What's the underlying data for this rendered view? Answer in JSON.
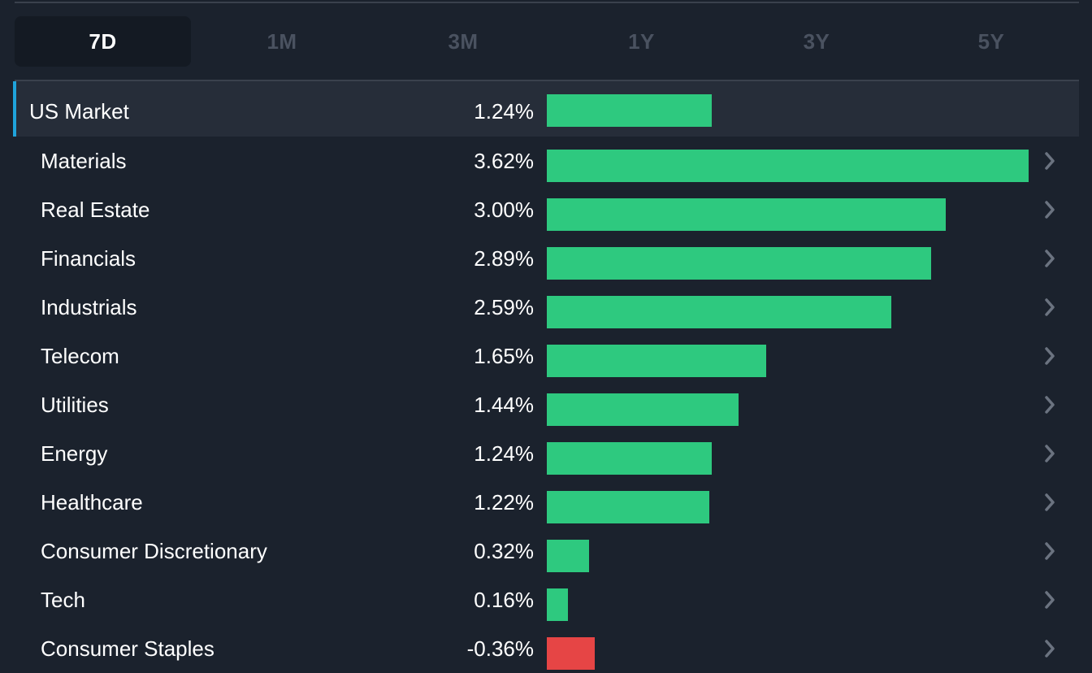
{
  "tabs": [
    {
      "label": "7D",
      "active": true
    },
    {
      "label": "1M",
      "active": false
    },
    {
      "label": "3M",
      "active": false
    },
    {
      "label": "1Y",
      "active": false
    },
    {
      "label": "3Y",
      "active": false
    },
    {
      "label": "5Y",
      "active": false
    }
  ],
  "colors": {
    "positive": "#2ec97f",
    "negative": "#e64545",
    "accent": "#1fa4db",
    "chevron": "#6b7380"
  },
  "market": {
    "label": "US Market",
    "value_text": "1.24%",
    "value": 1.24
  },
  "sectors": [
    {
      "label": "Materials",
      "value_text": "3.62%",
      "value": 3.62
    },
    {
      "label": "Real Estate",
      "value_text": "3.00%",
      "value": 3.0
    },
    {
      "label": "Financials",
      "value_text": "2.89%",
      "value": 2.89
    },
    {
      "label": "Industrials",
      "value_text": "2.59%",
      "value": 2.59
    },
    {
      "label": "Telecom",
      "value_text": "1.65%",
      "value": 1.65
    },
    {
      "label": "Utilities",
      "value_text": "1.44%",
      "value": 1.44
    },
    {
      "label": "Energy",
      "value_text": "1.24%",
      "value": 1.24
    },
    {
      "label": "Healthcare",
      "value_text": "1.22%",
      "value": 1.22
    },
    {
      "label": "Consumer Discretionary",
      "value_text": "0.32%",
      "value": 0.32
    },
    {
      "label": "Tech",
      "value_text": "0.16%",
      "value": 0.16
    },
    {
      "label": "Consumer Staples",
      "value_text": "-0.36%",
      "value": -0.36
    }
  ],
  "chevron_icon": "chevron-right-icon"
}
